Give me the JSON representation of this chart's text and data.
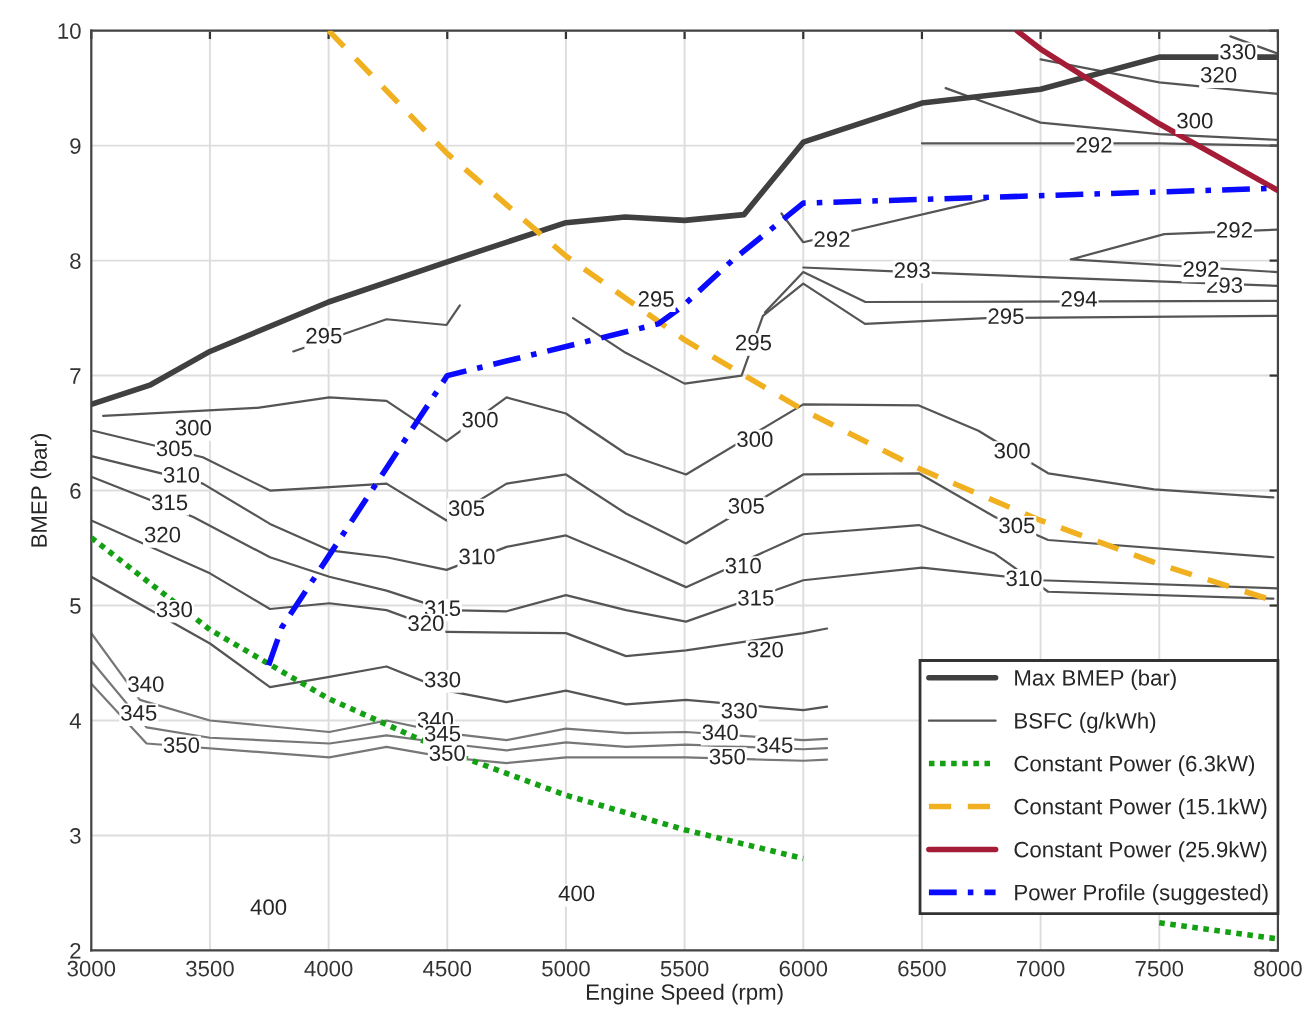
{
  "chart_data": {
    "type": "line",
    "xlabel": "Engine Speed (rpm)",
    "ylabel": "BMEP (bar)",
    "xlim": [
      3000,
      8000
    ],
    "xticks": [
      3000,
      3500,
      4000,
      4500,
      5000,
      5500,
      6000,
      6500,
      7000,
      7500,
      8000
    ],
    "ylim": [
      2,
      10
    ],
    "yticks": [
      2,
      3,
      4,
      5,
      6,
      7,
      8,
      9,
      10
    ],
    "grid": true,
    "legend": "bottom right",
    "series": [
      {
        "name": "Max BMEP (bar)",
        "color": "#404040",
        "line_style": "solid",
        "x": [
          3000,
          3250,
          3500,
          4000,
          4500,
          5000,
          5250,
          5500,
          5750,
          6000,
          6500,
          7000,
          7500,
          8000
        ],
        "values": [
          6.75,
          6.92,
          7.21,
          7.64,
          7.99,
          8.33,
          8.38,
          8.35,
          8.4,
          9.03,
          9.37,
          9.49,
          9.77,
          9.77
        ]
      },
      {
        "name": "BSFC (g/kWh)",
        "color": "#555555",
        "line_style": "solid",
        "x": [
          3000,
          3470,
          3753,
          4003,
          4244,
          4497,
          4750,
          5000,
          5253,
          5506,
          6000,
          6487,
          6808,
          7032,
          7981
        ],
        "values": [
          6.3,
          6.06,
          5.71,
          5.48,
          5.42,
          5.31,
          5.51,
          5.61,
          5.39,
          5.16,
          5.62,
          5.7,
          5.45,
          5.12,
          5.06
        ]
      },
      {
        "name": "Constant Power (6.3kW)",
        "color": "#13a013",
        "line_style": "dotted",
        "x": [
          3000,
          3500,
          4000,
          4500,
          5000,
          5500,
          6000,
          6500,
          7000,
          7500,
          8000
        ],
        "values": [
          5.59,
          4.79,
          4.19,
          3.73,
          3.35,
          3.05,
          2.8,
          null,
          null,
          2.24,
          2.1
        ]
      },
      {
        "name": "Constant Power (15.1kW)",
        "color": "#f0b020",
        "line_style": "dashed",
        "x": [
          4000,
          4500,
          5000,
          5500,
          6000,
          6500,
          7000,
          7500,
          8000
        ],
        "values": [
          10.0,
          8.93,
          8.04,
          7.31,
          6.7,
          6.18,
          5.74,
          5.36,
          5.03
        ]
      },
      {
        "name": "Constant Power (25.9kW)",
        "color": "#a51c36",
        "line_style": "solid",
        "x": [
          6900,
          7000,
          7500,
          8000
        ],
        "values": [
          10.0,
          9.84,
          9.19,
          8.61
        ]
      },
      {
        "name": "Power Profile (suggested)",
        "color": "#0a0aff",
        "line_style": "dashdot",
        "x": [
          3747,
          3803,
          4500,
          5390,
          5490,
          5700,
          6000,
          8000
        ],
        "values": [
          4.48,
          4.81,
          7.0,
          7.45,
          7.6,
          8.0,
          8.5,
          8.63
        ]
      },
      {
        "color": "#555555",
        "line_style": "solid",
        "x": [
          3050,
          3700,
          4003,
          4244,
          4497,
          4750,
          5000,
          5253,
          5506,
          6000,
          6487,
          6738,
          7032,
          7478,
          7981
        ],
        "values": [
          6.65,
          6.72,
          6.81,
          6.78,
          6.43,
          6.81,
          6.67,
          6.32,
          6.14,
          6.75,
          6.74,
          6.52,
          6.15,
          6.01,
          5.94
        ]
      },
      {
        "color": "#555555",
        "line_style": "solid",
        "x": [
          3008,
          3470,
          3753,
          4003,
          4244,
          4497,
          4750,
          5000,
          5253,
          5506,
          6000,
          6487,
          6808,
          7032,
          7981
        ],
        "values": [
          6.52,
          6.29,
          6.0,
          6.03,
          6.06,
          5.74,
          6.06,
          6.14,
          5.8,
          5.54,
          6.14,
          6.15,
          5.77,
          5.57,
          5.42
        ]
      },
      {
        "color": "#555555",
        "line_style": "solid",
        "x": [
          3000,
          3430,
          3753,
          4003,
          4244,
          4497,
          4750,
          5000,
          5253,
          5506,
          6000,
          6500,
          7000,
          8000
        ],
        "values": [
          6.12,
          5.77,
          5.42,
          5.25,
          5.13,
          4.96,
          4.95,
          5.09,
          4.96,
          4.86,
          5.22,
          5.33,
          5.22,
          5.15
        ]
      },
      {
        "color": "#555555",
        "line_style": "solid",
        "x": [
          3000,
          3500,
          3753,
          4003,
          4244,
          4497,
          5000,
          5253,
          5506,
          6000,
          6100
        ],
        "values": [
          5.74,
          5.28,
          4.97,
          5.02,
          4.96,
          4.77,
          4.76,
          4.56,
          4.61,
          4.76,
          4.8
        ]
      },
      {
        "color": "#555555",
        "line_style": "solid",
        "x": [
          3000,
          3500,
          3753,
          4003,
          4244,
          4497,
          4750,
          5000,
          5253,
          5506,
          6000,
          6100
        ],
        "values": [
          5.25,
          4.67,
          4.29,
          4.38,
          4.47,
          4.26,
          4.16,
          4.26,
          4.14,
          4.18,
          4.09,
          4.12
        ]
      },
      {
        "color": "#777777",
        "line_style": "solid",
        "x": [
          3000,
          3205,
          3500,
          4003,
          4244,
          4497,
          4750,
          5000,
          5253,
          5506,
          6000,
          6100
        ],
        "values": [
          4.76,
          4.18,
          4.0,
          3.9,
          4.0,
          3.89,
          3.83,
          3.93,
          3.89,
          3.9,
          3.83,
          3.84
        ]
      },
      {
        "color": "#777777",
        "line_style": "solid",
        "x": [
          3000,
          3233,
          3500,
          4003,
          4244,
          4497,
          4750,
          5000,
          5253,
          5506,
          6000,
          6100
        ],
        "values": [
          4.52,
          3.94,
          3.85,
          3.8,
          3.87,
          3.8,
          3.74,
          3.81,
          3.77,
          3.79,
          3.75,
          3.76
        ]
      },
      {
        "color": "#777777",
        "line_style": "solid",
        "x": [
          3000,
          3233,
          4003,
          4244,
          4497,
          4750,
          5000,
          5506,
          6000,
          6100
        ],
        "values": [
          4.32,
          3.8,
          3.68,
          3.77,
          3.68,
          3.63,
          3.68,
          3.68,
          3.65,
          3.66
        ]
      },
      {
        "color": "#555555",
        "line_style": "solid",
        "x": [
          3851,
          4244,
          4497,
          4553
        ],
        "values": [
          7.21,
          7.49,
          7.44,
          7.61
        ]
      },
      {
        "color": "#555555",
        "line_style": "solid",
        "x": [
          5030,
          5250,
          5500,
          5740,
          5830,
          6000,
          6260,
          6770,
          8000
        ],
        "values": [
          7.5,
          7.2,
          6.93,
          7.0,
          7.52,
          7.8,
          7.45,
          7.5,
          7.52
        ]
      },
      {
        "color": "#555555",
        "line_style": "solid",
        "x": [
          5839,
          6000,
          6262,
          8000
        ],
        "values": [
          7.55,
          7.9,
          7.64,
          7.65
        ]
      },
      {
        "color": "#555555",
        "line_style": "solid",
        "x": [
          6000,
          6459,
          8000
        ],
        "values": [
          7.94,
          7.9,
          7.78
        ]
      },
      {
        "color": "#555555",
        "line_style": "solid",
        "x": [
          5908,
          6000,
          6769
        ],
        "values": [
          8.41,
          8.16,
          8.53
        ]
      },
      {
        "color": "#555555",
        "line_style": "solid",
        "x": [
          8000,
          7521,
          7127,
          8000
        ],
        "values": [
          8.27,
          8.23,
          8.01,
          7.9
        ]
      },
      {
        "color": "#555555",
        "line_style": "solid",
        "x": [
          6500,
          7500,
          8000
        ],
        "values": [
          9.02,
          9.02,
          9.0
        ]
      },
      {
        "color": "#555555",
        "line_style": "solid",
        "x": [
          6600,
          7000,
          7500,
          8000
        ],
        "values": [
          9.5,
          9.2,
          9.1,
          9.05
        ]
      },
      {
        "color": "#555555",
        "line_style": "solid",
        "x": [
          7000,
          7500,
          8000
        ],
        "values": [
          9.75,
          9.55,
          9.45
        ]
      },
      {
        "color": "#555555",
        "line_style": "solid",
        "x": [
          7800,
          8000
        ],
        "values": [
          9.95,
          9.8
        ]
      }
    ],
    "annotations": [
      {
        "text": "300",
        "x": 3430,
        "y": 6.53
      },
      {
        "text": "300",
        "x": 4638,
        "y": 6.6
      },
      {
        "text": "300",
        "x": 5796,
        "y": 6.43
      },
      {
        "text": "300",
        "x": 6880,
        "y": 6.33
      },
      {
        "text": "305",
        "x": 3350,
        "y": 6.35
      },
      {
        "text": "305",
        "x": 4581,
        "y": 5.83
      },
      {
        "text": "305",
        "x": 5760,
        "y": 5.85
      },
      {
        "text": "305",
        "x": 6900,
        "y": 5.68
      },
      {
        "text": "310",
        "x": 3380,
        "y": 6.12
      },
      {
        "text": "310",
        "x": 4625,
        "y": 5.41
      },
      {
        "text": "310",
        "x": 5747,
        "y": 5.33
      },
      {
        "text": "310",
        "x": 6930,
        "y": 5.22
      },
      {
        "text": "315",
        "x": 3330,
        "y": 5.88
      },
      {
        "text": "315",
        "x": 4480,
        "y": 4.96
      },
      {
        "text": "315",
        "x": 5800,
        "y": 5.05
      },
      {
        "text": "320",
        "x": 3300,
        "y": 5.6
      },
      {
        "text": "320",
        "x": 4410,
        "y": 4.83
      },
      {
        "text": "320",
        "x": 5840,
        "y": 4.6
      },
      {
        "text": "330",
        "x": 3350,
        "y": 4.95
      },
      {
        "text": "330",
        "x": 4480,
        "y": 4.34
      },
      {
        "text": "330",
        "x": 5730,
        "y": 4.07
      },
      {
        "text": "340",
        "x": 3230,
        "y": 4.3
      },
      {
        "text": "340",
        "x": 4450,
        "y": 3.99
      },
      {
        "text": "340",
        "x": 5650,
        "y": 3.88
      },
      {
        "text": "345",
        "x": 3200,
        "y": 4.05
      },
      {
        "text": "345",
        "x": 4480,
        "y": 3.87
      },
      {
        "text": "345",
        "x": 5880,
        "y": 3.77
      },
      {
        "text": "350",
        "x": 3380,
        "y": 3.77
      },
      {
        "text": "350",
        "x": 4500,
        "y": 3.7
      },
      {
        "text": "350",
        "x": 5680,
        "y": 3.67
      },
      {
        "text": "295",
        "x": 3980,
        "y": 7.33
      },
      {
        "text": "295",
        "x": 5380,
        "y": 7.65
      },
      {
        "text": "295",
        "x": 5790,
        "y": 7.27
      },
      {
        "text": "295",
        "x": 6854,
        "y": 7.5
      },
      {
        "text": "294",
        "x": 7162,
        "y": 7.65
      },
      {
        "text": "293",
        "x": 6459,
        "y": 7.9
      },
      {
        "text": "293",
        "x": 7775,
        "y": 7.77
      },
      {
        "text": "292",
        "x": 6121,
        "y": 8.17
      },
      {
        "text": "292",
        "x": 7817,
        "y": 8.25
      },
      {
        "text": "292",
        "x": 7676,
        "y": 7.91
      },
      {
        "text": "292",
        "x": 7225,
        "y": 8.99
      },
      {
        "text": "300",
        "x": 7650,
        "y": 9.2
      },
      {
        "text": "320",
        "x": 7750,
        "y": 9.6
      },
      {
        "text": "330",
        "x": 7831,
        "y": 9.8
      },
      {
        "text": "400",
        "x": 3747,
        "y": 2.36
      },
      {
        "text": "400",
        "x": 5045,
        "y": 2.48
      }
    ]
  }
}
